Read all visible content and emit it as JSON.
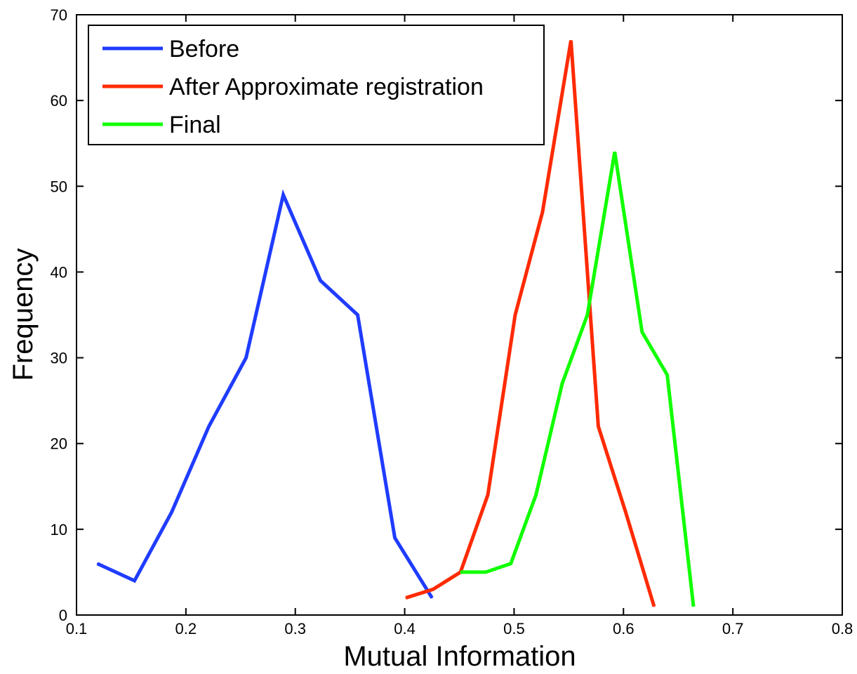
{
  "chart_data": {
    "type": "line",
    "title": "",
    "xlabel": "Mutual Information",
    "ylabel": "Frequency",
    "xlim": [
      0.1,
      0.8
    ],
    "ylim": [
      0,
      70
    ],
    "xticks": [
      "0.1",
      "0.2",
      "0.3",
      "0.4",
      "0.5",
      "0.6",
      "0.7",
      "0.8"
    ],
    "yticks": [
      "0",
      "10",
      "20",
      "30",
      "40",
      "50",
      "60",
      "70"
    ],
    "grid": false,
    "legend_position": "top-left",
    "series": [
      {
        "name": "Before",
        "color": "#1f3cff",
        "x": [
          0.119,
          0.153,
          0.187,
          0.221,
          0.255,
          0.289,
          0.323,
          0.357,
          0.391,
          0.425
        ],
        "y": [
          6,
          4,
          12,
          22,
          30,
          49,
          39,
          35,
          9,
          2
        ]
      },
      {
        "name": "After Approximate registration",
        "color": "#ff2a00",
        "x": [
          0.401,
          0.426,
          0.451,
          0.476,
          0.501,
          0.526,
          0.552,
          0.577,
          0.602,
          0.628
        ],
        "y": [
          2,
          3,
          5,
          14,
          35,
          47,
          67,
          22,
          12,
          1
        ]
      },
      {
        "name": "Final",
        "color": "#11ff00",
        "x": [
          0.451,
          0.474,
          0.497,
          0.52,
          0.544,
          0.567,
          0.592,
          0.617,
          0.64,
          0.664
        ],
        "y": [
          5,
          5,
          6,
          14,
          27,
          35,
          54,
          33,
          28,
          1
        ]
      }
    ]
  }
}
